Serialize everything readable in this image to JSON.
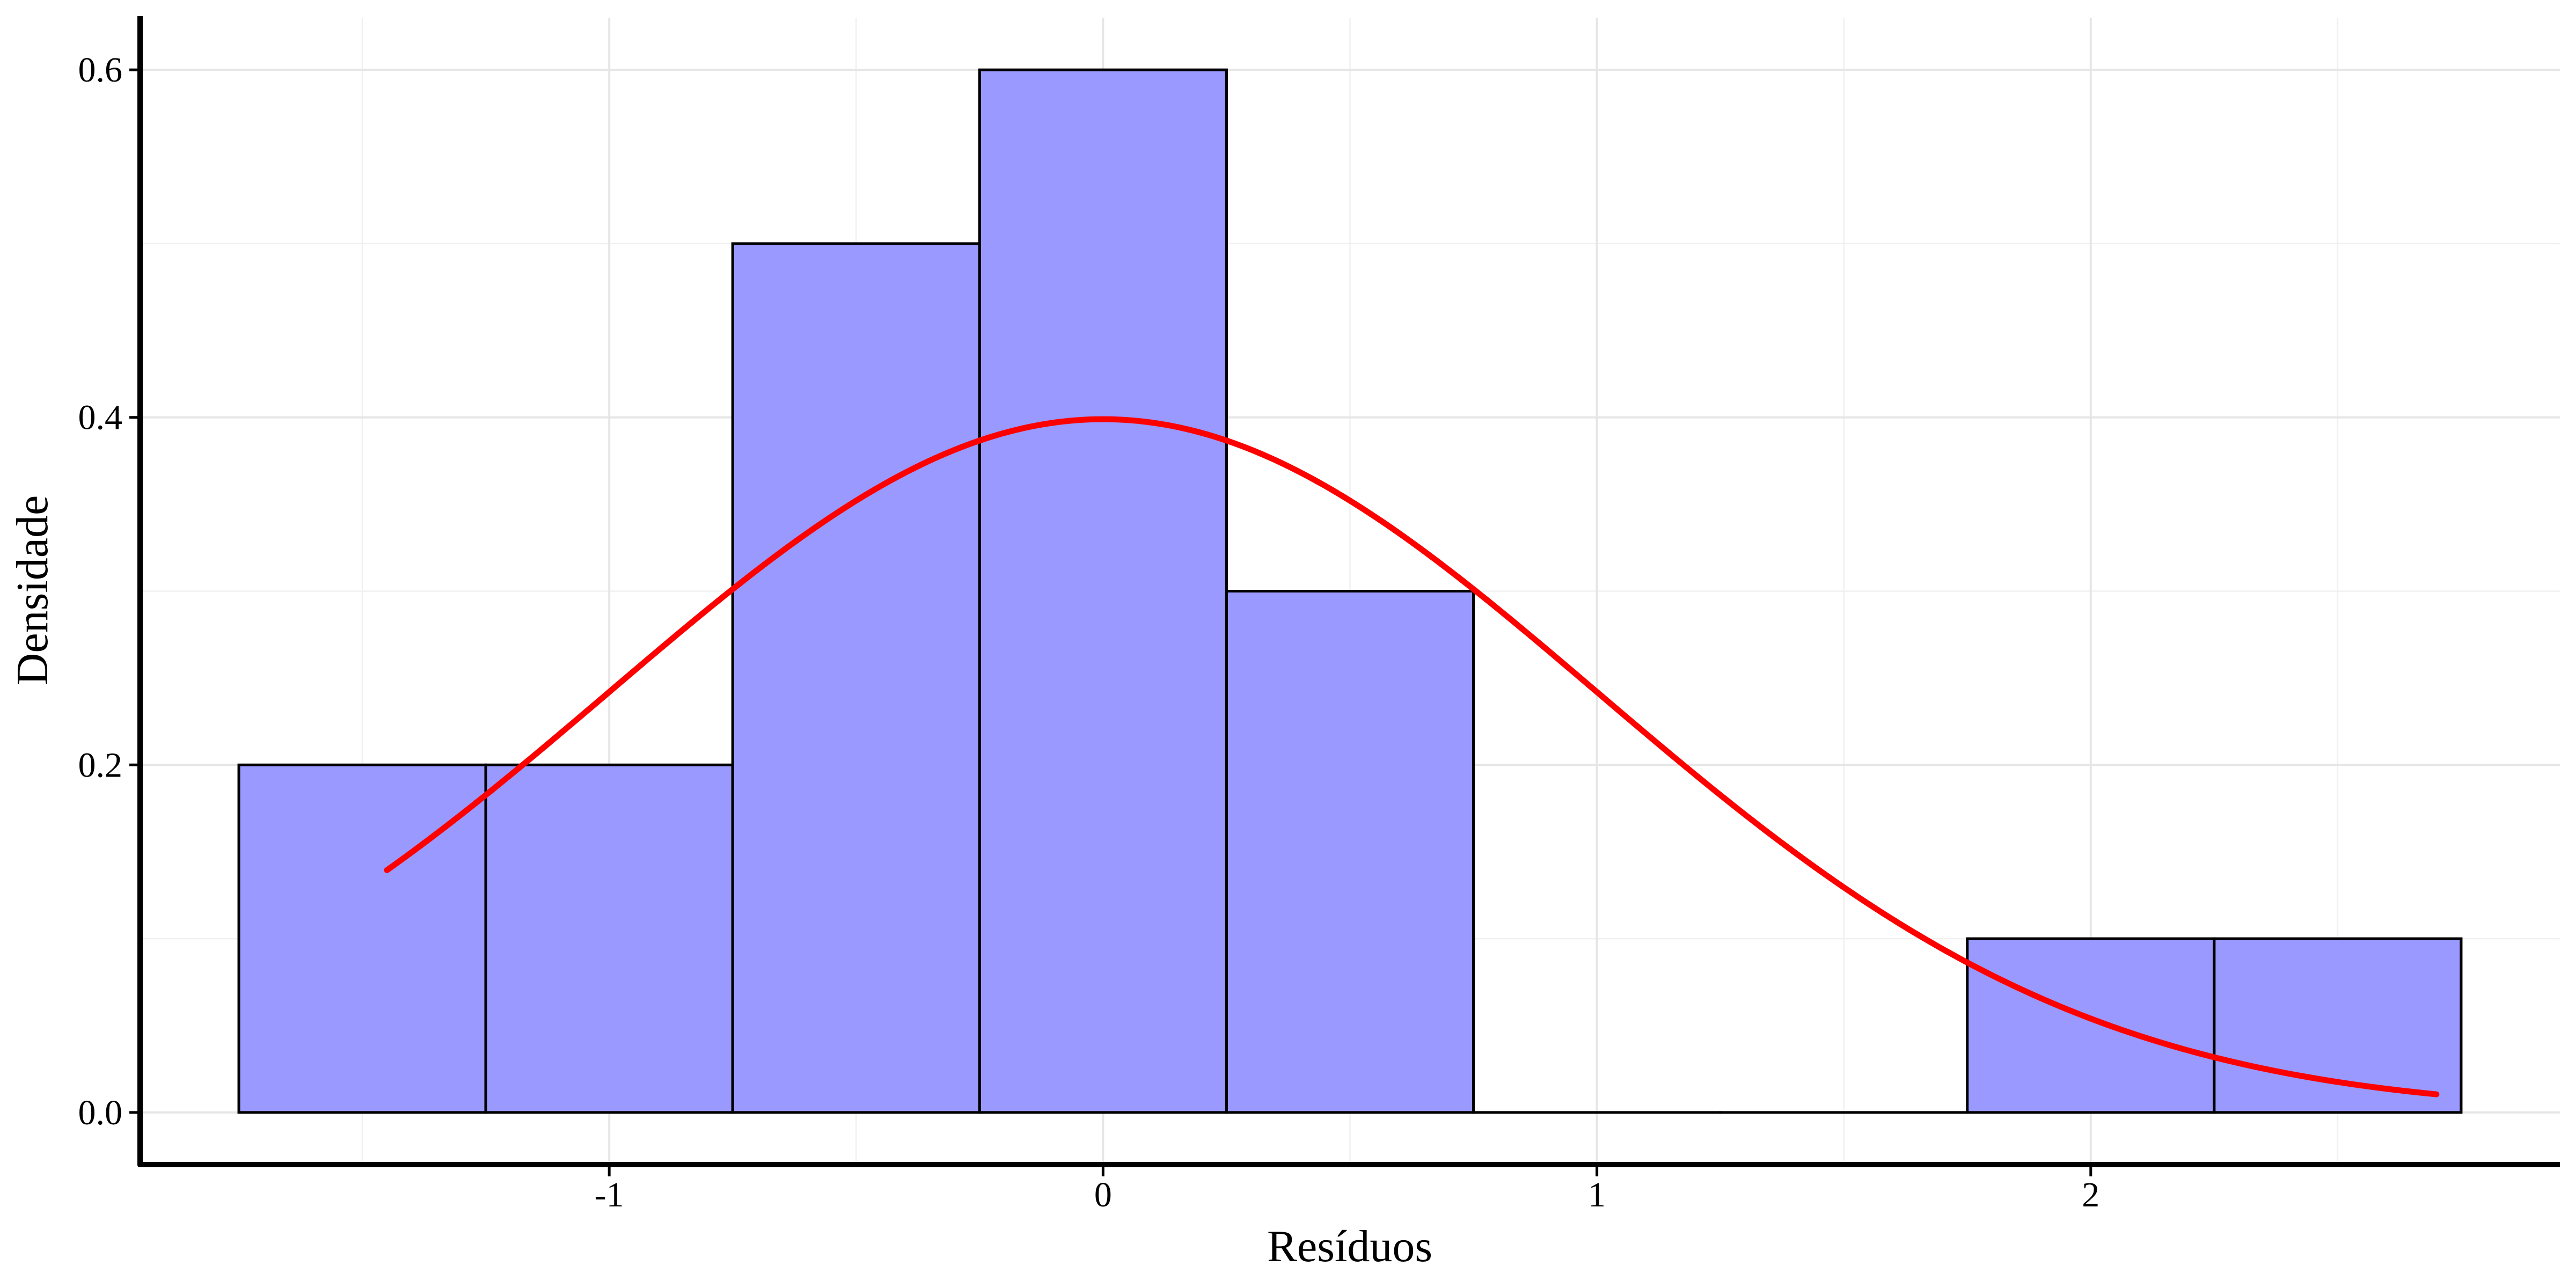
{
  "chart_data": {
    "type": "bar",
    "subtype": "histogram with density curve",
    "xlabel": "Resíduos",
    "ylabel": "Densidade",
    "xlim": [
      -1.95,
      2.95
    ],
    "ylim": [
      -0.03,
      0.63
    ],
    "x_ticks": [
      -1,
      0,
      1,
      2
    ],
    "x_tick_labels": [
      "-1",
      "0",
      "1",
      "2"
    ],
    "y_ticks": [
      0.0,
      0.2,
      0.4,
      0.6
    ],
    "y_tick_labels": [
      "0.0",
      "0.2",
      "0.4",
      "0.6"
    ],
    "grid": true,
    "bins": [
      {
        "x0": -1.75,
        "x1": -1.25,
        "density": 0.2
      },
      {
        "x0": -1.25,
        "x1": -0.75,
        "density": 0.2
      },
      {
        "x0": -0.75,
        "x1": -0.25,
        "density": 0.5
      },
      {
        "x0": -0.25,
        "x1": 0.25,
        "density": 0.6
      },
      {
        "x0": 0.25,
        "x1": 0.75,
        "density": 0.3
      },
      {
        "x0": 0.75,
        "x1": 1.25,
        "density": 0.0
      },
      {
        "x0": 1.25,
        "x1": 1.75,
        "density": 0.0
      },
      {
        "x0": 1.75,
        "x1": 2.25,
        "density": 0.1
      },
      {
        "x0": 2.25,
        "x1": 2.75,
        "density": 0.1
      }
    ],
    "bar_fill": "#9999ff",
    "bar_stroke": "#000000",
    "curve": {
      "type": "line",
      "distribution": "normal",
      "mean": 0,
      "sd": 1,
      "x_range": [
        -1.45,
        2.7
      ],
      "color": "#ff0000"
    }
  }
}
